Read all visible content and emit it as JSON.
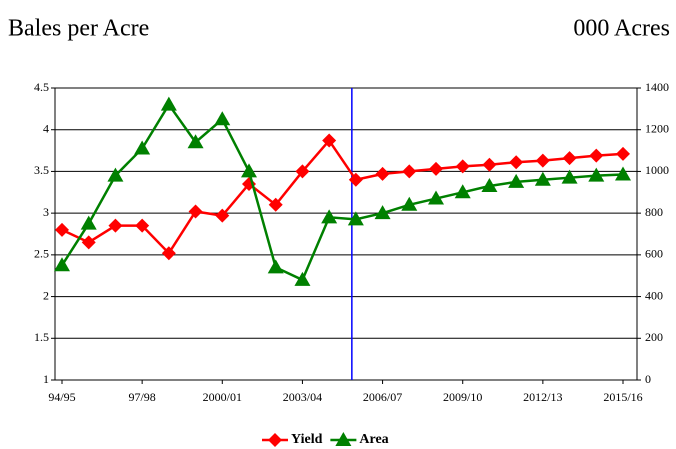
{
  "chart_data": {
    "type": "line",
    "y_label": "Bales per Acre",
    "y2_label": "000 Acres",
    "categories": [
      "94/95",
      null,
      null,
      "97/98",
      null,
      null,
      "2000/01",
      null,
      null,
      "2003/04",
      null,
      null,
      "2006/07",
      null,
      null,
      "2009/10",
      null,
      null,
      "2012/13",
      null,
      null,
      "2015/16"
    ],
    "series": [
      {
        "name": "Yield",
        "color": "#ff0000",
        "values": [
          2.8,
          2.65,
          2.85,
          2.85,
          2.52,
          3.02,
          2.97,
          3.35,
          3.1,
          3.5,
          3.87,
          3.4,
          3.47,
          3.5,
          3.53,
          3.56,
          3.58,
          3.61,
          3.63,
          3.66,
          3.69,
          3.71
        ]
      },
      {
        "name": "Area",
        "color": "#008000",
        "axis": "y2",
        "values": [
          550,
          750,
          980,
          1110,
          1320,
          1140,
          1250,
          1000,
          540,
          480,
          780,
          770,
          800,
          840,
          870,
          900,
          930,
          950,
          960,
          970,
          980,
          985
        ]
      }
    ],
    "ylim": [
      1,
      4.5
    ],
    "yticks": [
      1,
      1.5,
      2,
      2.5,
      3,
      3.5,
      4,
      4.5
    ],
    "y2lim": [
      0,
      1400
    ],
    "y2ticks": [
      0,
      200,
      400,
      600,
      800,
      1000,
      1200,
      1400
    ],
    "grid": true,
    "legend": "bottom"
  }
}
